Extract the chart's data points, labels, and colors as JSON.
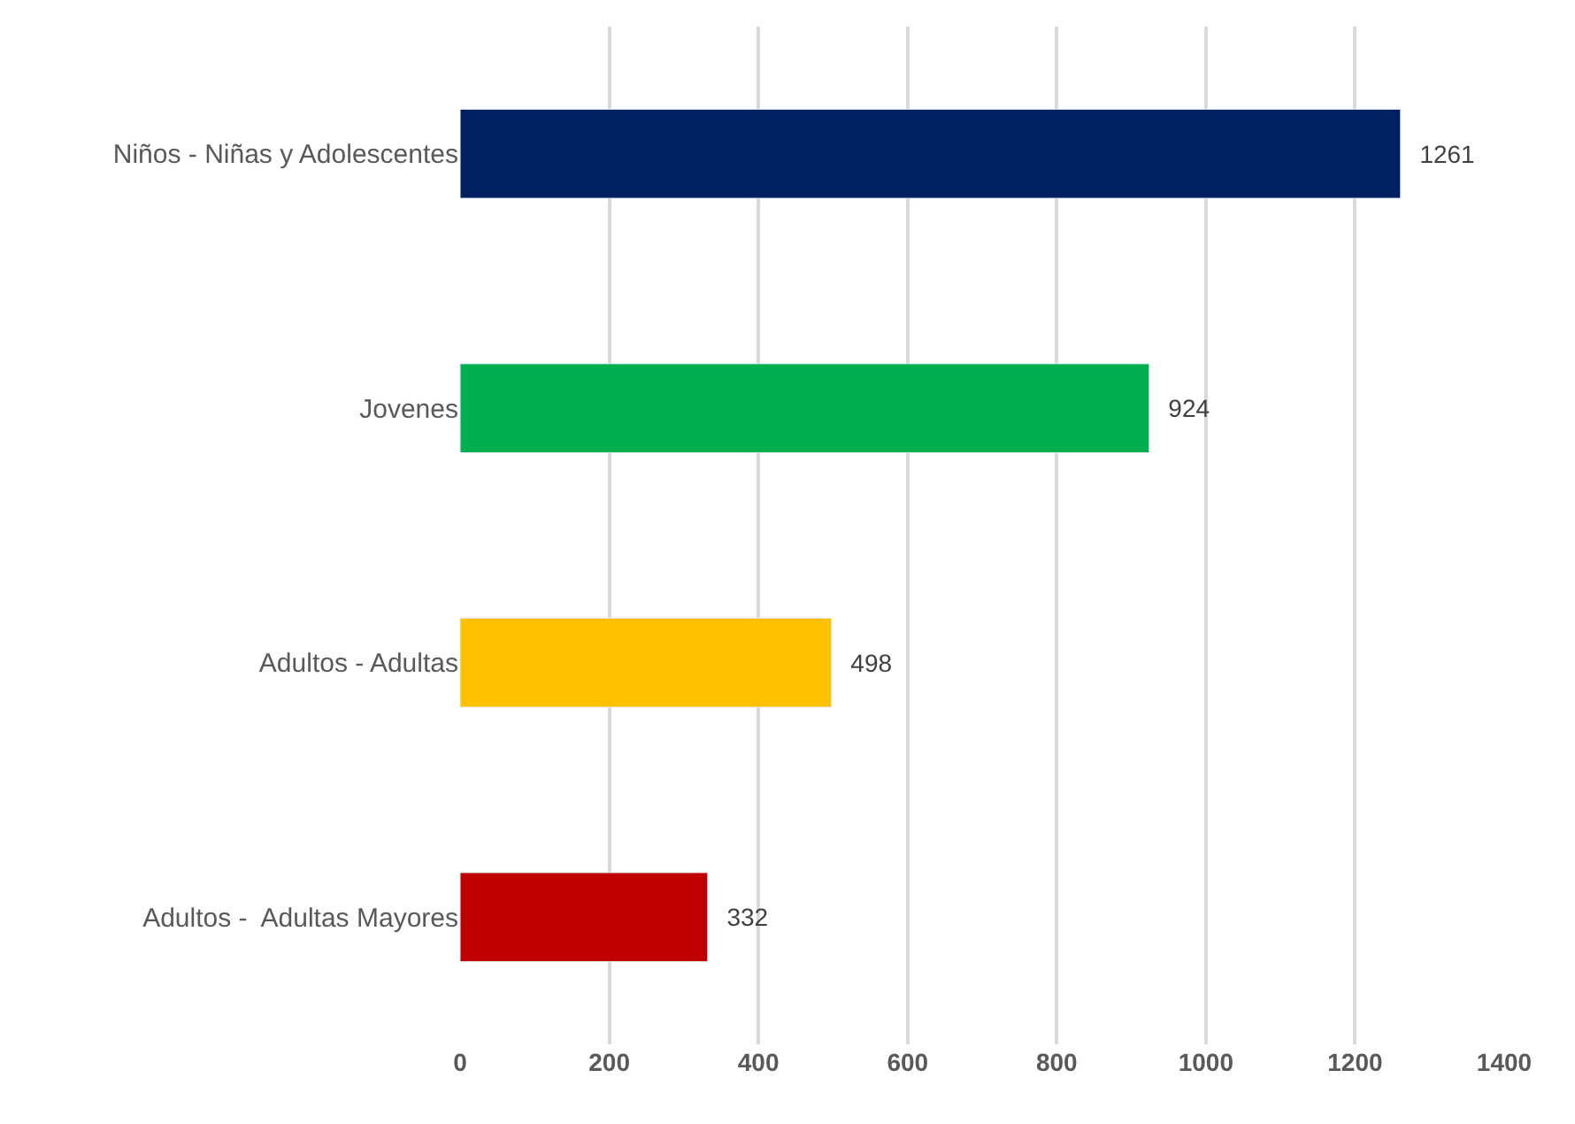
{
  "chart_data": {
    "type": "bar",
    "orientation": "horizontal",
    "categories": [
      "Niños - Niñas y Adolescentes",
      "Jovenes",
      "Adultos - Adultas",
      "Adultos -  Adultas Mayores"
    ],
    "values": [
      1261,
      924,
      498,
      332
    ],
    "colors": [
      "#002060",
      "#00b050",
      "#ffc000",
      "#c00000"
    ],
    "xlim": [
      0,
      1400
    ],
    "xticks": [
      0,
      200,
      400,
      600,
      800,
      1000,
      1200,
      1400
    ],
    "grid": "x",
    "data_labels": true
  }
}
